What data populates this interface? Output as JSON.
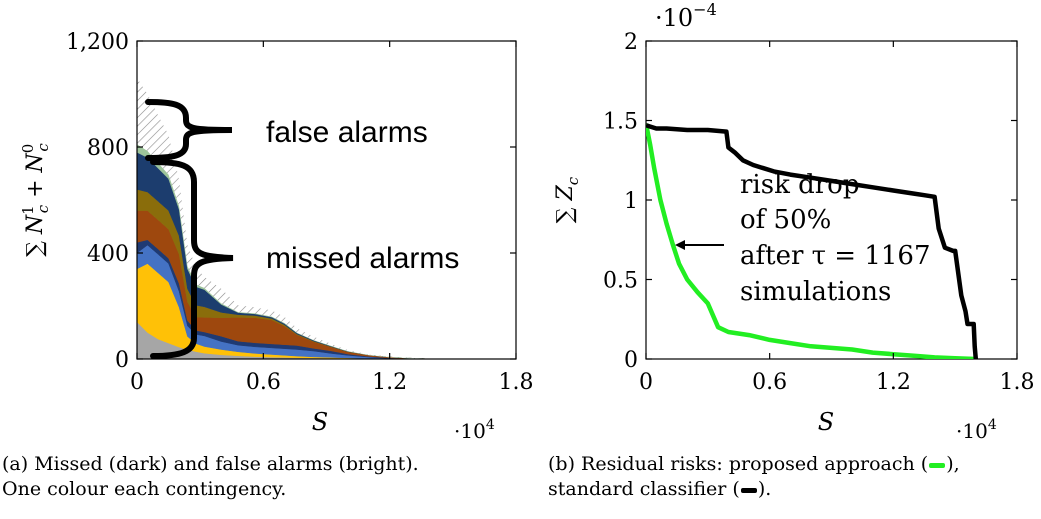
{
  "chart_data": [
    {
      "type": "area",
      "stacked": true,
      "xlabel": "S",
      "x_multiplier": "·10^4",
      "xlim": [
        0,
        18000
      ],
      "ylim": [
        0,
        1200
      ],
      "xticks": [
        0,
        6000,
        12000,
        18000
      ],
      "xtick_labels": [
        "0",
        "0.6",
        "1.2",
        "1.8"
      ],
      "yticks": [
        0,
        400,
        800,
        1200
      ],
      "ytick_labels": [
        "0",
        "400",
        "800",
        "1,200"
      ],
      "ylabel_tex": [
        "∑ ",
        "N",
        "c",
        "1",
        " + ",
        "N",
        "c",
        "0"
      ],
      "annotations": [
        "false alarms",
        "missed alarms"
      ],
      "x": [
        0,
        500,
        1000,
        1500,
        2000,
        2400,
        2800,
        3200,
        4000,
        4800,
        5600,
        6400,
        7000,
        7600,
        8400,
        9200,
        10000,
        11000,
        12000,
        13000,
        14000,
        15000,
        16000,
        17000,
        18000
      ],
      "series": [
        {
          "color": "#a6a6a6",
          "values": [
            140,
            100,
            75,
            60,
            45,
            35,
            28,
            22,
            16,
            12,
            9,
            7,
            6,
            5,
            4,
            3,
            2,
            1,
            0,
            0,
            0,
            0,
            0,
            0,
            0
          ]
        },
        {
          "color": "#ffc107",
          "values": [
            200,
            260,
            250,
            230,
            150,
            50,
            30,
            25,
            20,
            15,
            12,
            10,
            8,
            6,
            4,
            3,
            2,
            1,
            0,
            0,
            0,
            0,
            0,
            0,
            0
          ]
        },
        {
          "color": "#4472c4",
          "values": [
            60,
            70,
            70,
            70,
            60,
            40,
            35,
            40,
            30,
            25,
            25,
            25,
            25,
            25,
            22,
            15,
            10,
            5,
            2,
            1,
            0,
            0,
            0,
            0,
            0
          ]
        },
        {
          "color": "#1f3a73",
          "values": [
            40,
            20,
            20,
            20,
            30,
            20,
            15,
            15,
            20,
            15,
            15,
            15,
            15,
            15,
            10,
            10,
            5,
            3,
            2,
            1,
            0,
            0,
            0,
            0,
            0
          ]
        },
        {
          "color": "#9e480e",
          "values": [
            120,
            110,
            110,
            110,
            110,
            70,
            50,
            55,
            70,
            90,
            95,
            90,
            70,
            40,
            25,
            15,
            8,
            5,
            3,
            1,
            0,
            0,
            0,
            0,
            0
          ]
        },
        {
          "color": "#8a6d0b",
          "values": [
            80,
            70,
            70,
            70,
            70,
            50,
            45,
            40,
            20,
            10,
            8,
            6,
            5,
            3,
            2,
            1,
            1,
            0,
            0,
            0,
            0,
            0,
            0,
            0,
            0
          ]
        },
        {
          "color": "#1c3d6e",
          "values": [
            140,
            130,
            125,
            120,
            100,
            75,
            70,
            65,
            30,
            8,
            6,
            5,
            5,
            4,
            3,
            2,
            1,
            0,
            0,
            0,
            0,
            0,
            0,
            0,
            0
          ]
        },
        {
          "color": "#9dc49a",
          "values": [
            30,
            25,
            20,
            15,
            12,
            10,
            8,
            6,
            4,
            2,
            2,
            2,
            2,
            1,
            1,
            1,
            1,
            0,
            0,
            0,
            0,
            0,
            0,
            0,
            0
          ]
        },
        {
          "color": "#d0d0d0",
          "values": [
            250,
            215,
            180,
            150,
            100,
            80,
            65,
            42,
            55,
            26,
            23,
            23,
            23,
            17,
            13,
            8,
            4,
            2,
            1,
            1,
            1,
            1,
            0,
            0,
            0
          ]
        }
      ]
    },
    {
      "type": "line",
      "xlabel": "S",
      "x_multiplier": "·10^4",
      "xlim": [
        0,
        18000
      ],
      "ylim": [
        0,
        0.0002
      ],
      "xticks": [
        0,
        6000,
        12000,
        18000
      ],
      "xtick_labels": [
        "0",
        "0.6",
        "1.2",
        "1.8"
      ],
      "yticks": [
        0,
        5e-05,
        0.0001,
        0.00015,
        0.0002
      ],
      "ytick_labels": [
        "0",
        "0.5",
        "1",
        "1.5",
        "2"
      ],
      "y_multiplier": "·10^−4",
      "ylabel_tex": [
        "∑ ",
        "Z",
        "c"
      ],
      "annotation_lines": [
        "risk drop",
        "of 50%",
        "after τ = 1167",
        "simulations"
      ],
      "series": [
        {
          "color": "#22ee22",
          "x": [
            0,
            200,
            400,
            700,
            1000,
            1300,
            1600,
            2000,
            2500,
            3000,
            3500,
            4000,
            5000,
            6000,
            7000,
            8000,
            9000,
            10000,
            11000,
            12000,
            13000,
            14000,
            15000,
            16000
          ],
          "y": [
            0.000148,
            0.000135,
            0.00012,
            0.0001,
            8.5e-05,
            7.2e-05,
            6e-05,
            5e-05,
            4.2e-05,
            3.5e-05,
            2e-05,
            1.7e-05,
            1.5e-05,
            1.2e-05,
            1e-05,
            8e-06,
            7e-06,
            6e-06,
            4e-06,
            3e-06,
            2e-06,
            1e-06,
            5e-07,
            0
          ]
        },
        {
          "color": "#000000",
          "x": [
            0,
            500,
            1000,
            2000,
            3000,
            3900,
            4000,
            4300,
            4700,
            5200,
            5700,
            6200,
            7000,
            8000,
            9000,
            10000,
            11000,
            12000,
            13000,
            13500,
            14000,
            14200,
            14500,
            14900,
            15000,
            15300,
            15500,
            15600,
            15900,
            15950,
            16000
          ],
          "y": [
            0.000147,
            0.000145,
            0.000145,
            0.000144,
            0.000144,
            0.000143,
            0.000133,
            0.00013,
            0.000125,
            0.000122,
            0.00012,
            0.000118,
            0.000116,
            0.000114,
            0.000112,
            0.00011,
            0.000108,
            0.000106,
            0.000104,
            0.000103,
            0.000102,
            8.2e-05,
            7e-05,
            6.8e-05,
            6.8e-05,
            4e-05,
            3e-05,
            2.2e-05,
            2.2e-05,
            8e-06,
            0
          ]
        }
      ]
    }
  ],
  "captions": {
    "a": [
      "(a) Missed (dark) and false alarms (bright).",
      "One colour each contingency."
    ],
    "b": {
      "line1_pre": "(b) Residual risks: proposed approach (",
      "line1_post": "),",
      "line2_pre": "standard classifier (",
      "line2_post": ").",
      "swatch_green": "#22ee22",
      "swatch_black": "#000000"
    }
  }
}
